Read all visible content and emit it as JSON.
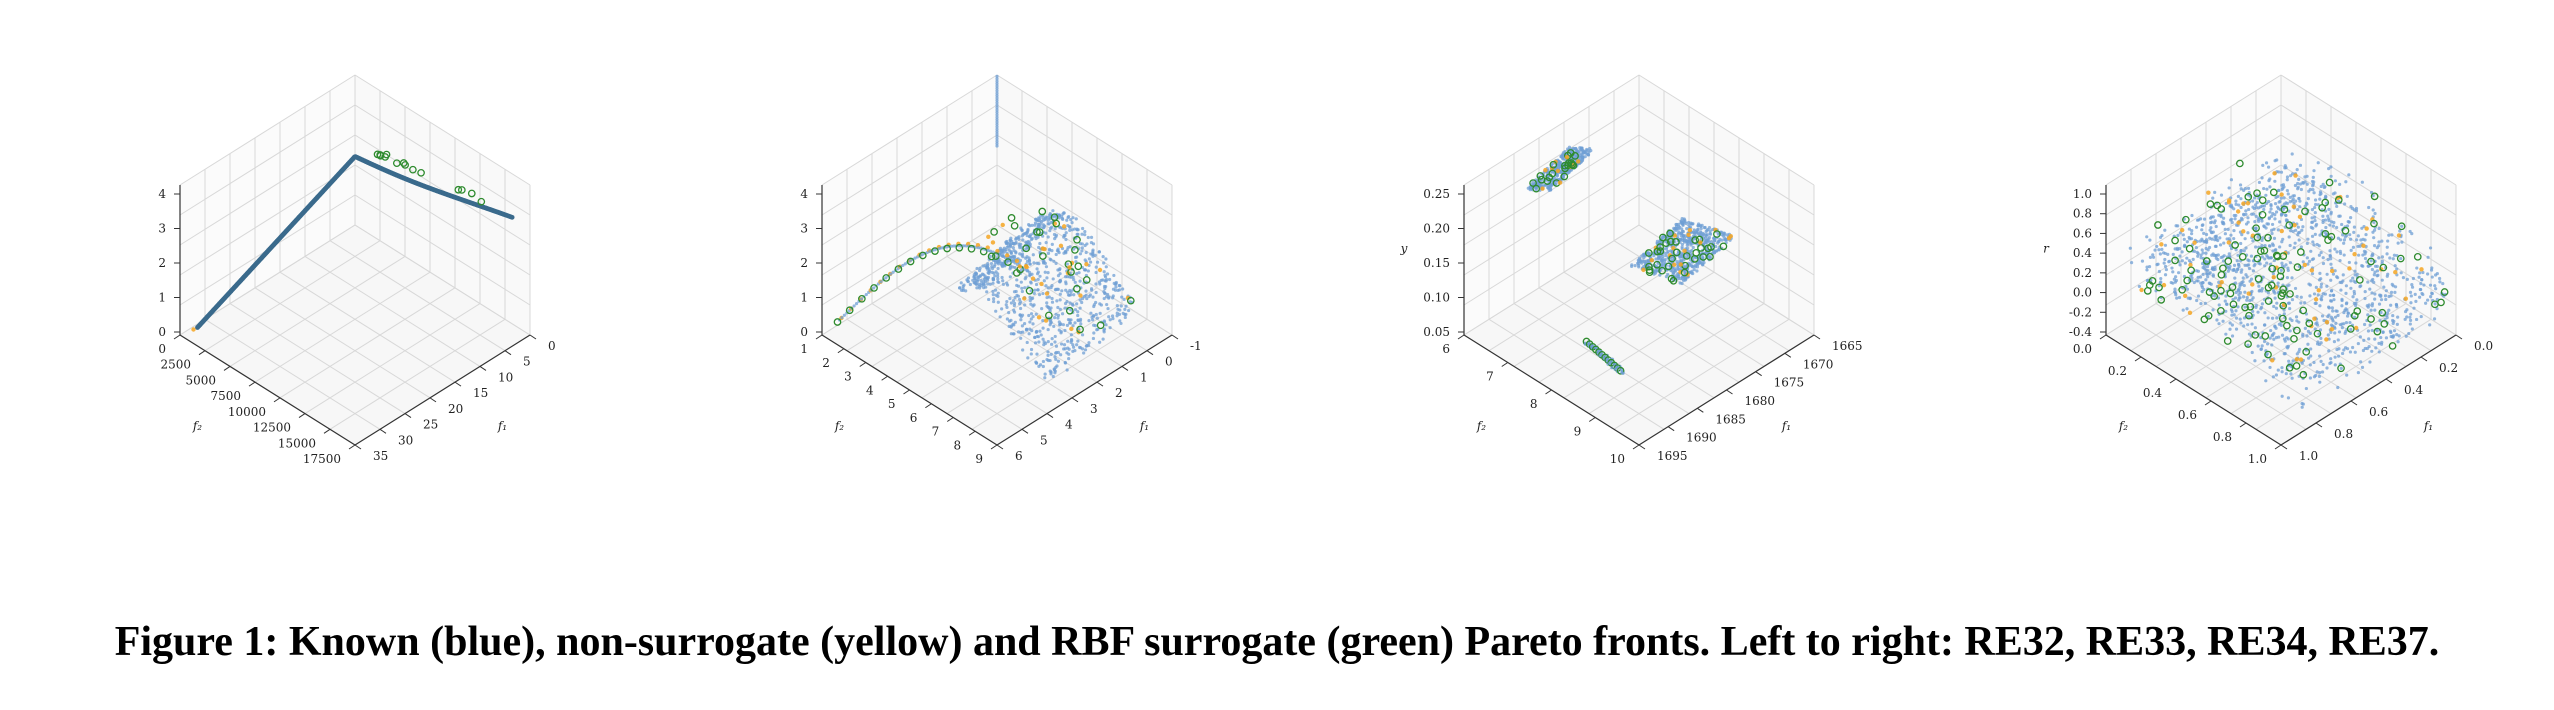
{
  "caption": "Figure 1: Known (blue), non-surrogate (yellow) and RBF surrogate (green) Pareto fronts. Left to right: RE32, RE33, RE34, RE37.",
  "colors": {
    "known": "#6f9fd4",
    "known_dense": "#3a6a8c",
    "non_surrogate": "#f5a623",
    "rbf_surrogate": "#2e8b2e",
    "grid": "#d8d8d8",
    "pane": "#f4f4f4"
  },
  "chart_data": [
    {
      "name": "RE32",
      "type": "scatter",
      "x_label": "f₁",
      "y_label": "f₂",
      "z_label": "",
      "x_ticks": [
        "0",
        "5",
        "10",
        "15",
        "20",
        "25",
        "30",
        "35"
      ],
      "y_ticks": [
        "0",
        "2500",
        "5000",
        "7500",
        "10000",
        "12500",
        "15000",
        "17500"
      ],
      "z_ticks": [
        "0",
        "1",
        "2",
        "3",
        "4"
      ],
      "xlim": [
        0,
        35
      ],
      "ylim": [
        0,
        17500
      ],
      "zlim": [
        0,
        4.5
      ],
      "shape": "curve",
      "series": [
        {
          "label": "known",
          "points": []
        },
        {
          "label": "non_surrogate",
          "points": []
        },
        {
          "label": "rbf_surrogate",
          "points": []
        }
      ]
    },
    {
      "name": "RE33",
      "type": "scatter",
      "x_label": "f₁",
      "y_label": "f₂",
      "z_label": "",
      "x_ticks": [
        "-1",
        "0",
        "1",
        "2",
        "3",
        "4",
        "5",
        "6"
      ],
      "y_ticks": [
        "1",
        "2",
        "3",
        "4",
        "5",
        "6",
        "7",
        "8",
        "9"
      ],
      "z_ticks": [
        "0",
        "1",
        "2",
        "3",
        "4"
      ],
      "xlim": [
        -1,
        6
      ],
      "ylim": [
        1,
        9
      ],
      "zlim": [
        0,
        4.5
      ],
      "shape": "ridge",
      "series": [
        {
          "label": "known",
          "points": []
        },
        {
          "label": "non_surrogate",
          "points": []
        },
        {
          "label": "rbf_surrogate",
          "points": []
        }
      ]
    },
    {
      "name": "RE34",
      "type": "scatter",
      "x_label": "f₁",
      "y_label": "f₂",
      "z_label": "y",
      "x_ticks": [
        "1665",
        "1670",
        "1675",
        "1680",
        "1685",
        "1690",
        "1695"
      ],
      "y_ticks": [
        "6",
        "7",
        "8",
        "9",
        "10"
      ],
      "z_ticks": [
        "0.05",
        "0.10",
        "0.15",
        "0.20",
        "0.25"
      ],
      "xlim": [
        1662,
        1697
      ],
      "ylim": [
        5.5,
        10.8
      ],
      "zlim": [
        0.03,
        0.28
      ],
      "shape": "patches",
      "series": [
        {
          "label": "known",
          "points": []
        },
        {
          "label": "non_surrogate",
          "points": []
        },
        {
          "label": "rbf_surrogate",
          "points": []
        }
      ]
    },
    {
      "name": "RE37",
      "type": "scatter",
      "x_label": "f₁",
      "y_label": "f₂",
      "z_label": "r",
      "x_ticks": [
        "0.0",
        "0.2",
        "0.4",
        "0.6",
        "0.8",
        "1.0"
      ],
      "y_ticks": [
        "0.0",
        "0.2",
        "0.4",
        "0.6",
        "0.8",
        "1.0"
      ],
      "z_ticks": [
        "-0.4",
        "-0.2",
        "0.0",
        "0.2",
        "0.4",
        "0.6",
        "0.8",
        "1.0"
      ],
      "xlim": [
        0,
        1.05
      ],
      "ylim": [
        0,
        1.05
      ],
      "zlim": [
        -0.45,
        1.15
      ],
      "shape": "cloud",
      "series": [
        {
          "label": "known",
          "points": []
        },
        {
          "label": "non_surrogate",
          "points": []
        },
        {
          "label": "rbf_surrogate",
          "points": []
        }
      ]
    }
  ]
}
